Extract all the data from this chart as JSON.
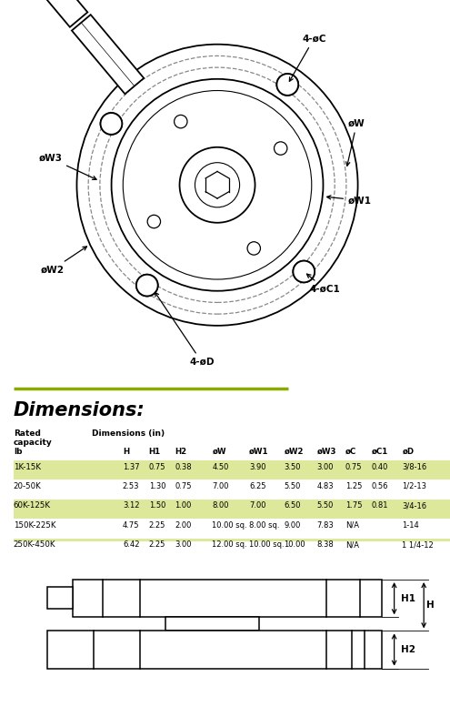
{
  "title": "Dimensions:",
  "col_headers": [
    "H",
    "H1",
    "H2",
    "øW",
    "øW1",
    "øW2",
    "øW3",
    "øC",
    "øC1",
    "øD"
  ],
  "sub_header": "Dimensions (in)",
  "rows": [
    {
      "cap": "1K-15K",
      "vals": [
        "1.37",
        "0.75",
        "0.38",
        "4.50",
        "3.90",
        "3.50",
        "3.00",
        "0.75",
        "0.40",
        "3/8-16"
      ],
      "highlight": true
    },
    {
      "cap": "20-50K",
      "vals": [
        "2.53",
        "1.30",
        "0.75",
        "7.00",
        "6.25",
        "5.50",
        "4.83",
        "1.25",
        "0.56",
        "1/2-13"
      ],
      "highlight": false
    },
    {
      "cap": "60K-125K",
      "vals": [
        "3.12",
        "1.50",
        "1.00",
        "8.00",
        "7.00",
        "6.50",
        "5.50",
        "1.75",
        "0.81",
        "3/4-16"
      ],
      "highlight": true
    },
    {
      "cap": "150K-225K",
      "vals": [
        "4.75",
        "2.25",
        "2.00",
        "10.00 sq.",
        "8.00 sq.",
        "9.00",
        "7.83",
        "N/A",
        "",
        "1-14"
      ],
      "highlight": false
    },
    {
      "cap": "250K-450K",
      "vals": [
        "6.42",
        "2.25",
        "3.00",
        "12.00 sq.",
        "10.00 sq.",
        "10.00",
        "8.38",
        "N/A",
        "",
        "1 1/4-12"
      ],
      "highlight": true
    }
  ],
  "highlight_color": "#dde89a",
  "line_color": "#8aaa00",
  "bg_color": "#ffffff",
  "labels": {
    "4oC": "4-øC",
    "oW": "øW",
    "oW3": "øW3",
    "oW1": "øW1",
    "oW2": "øW2",
    "4oC1": "4-øC1",
    "4oD": "4-øD"
  }
}
